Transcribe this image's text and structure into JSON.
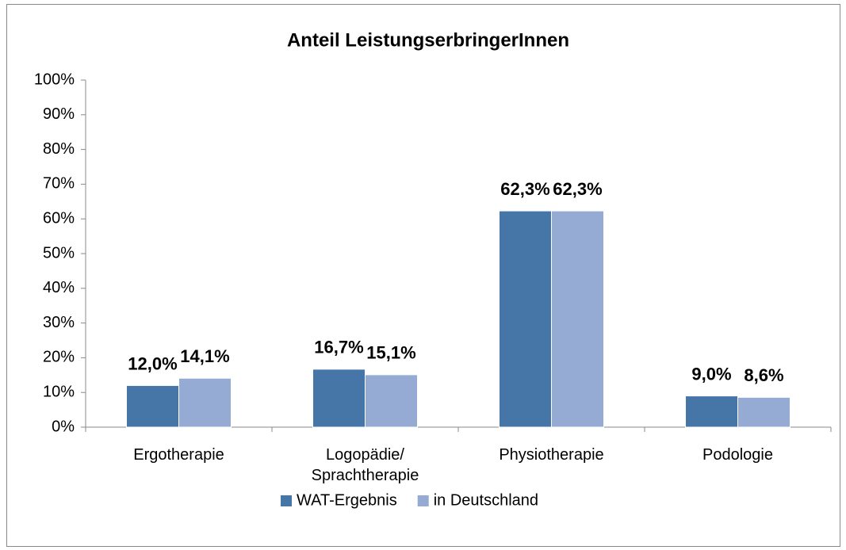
{
  "chart_data": {
    "type": "bar",
    "title": "Anteil LeistungserbringerInnen",
    "categories": [
      "Ergotherapie",
      "Logopädie/ Sprachtherapie",
      "Physiotherapie",
      "Podologie"
    ],
    "series": [
      {
        "name": "WAT-Ergebnis",
        "color": "#4675a8",
        "values": [
          12.0,
          16.7,
          62.3,
          9.0
        ],
        "value_labels": [
          "12,0%",
          "16,7%",
          "62,3%",
          "9,0%"
        ]
      },
      {
        "name": "in Deutschland",
        "color": "#95abd3",
        "values": [
          14.1,
          15.1,
          62.3,
          8.6
        ],
        "value_labels": [
          "14,1%",
          "15,1%",
          "62,3%",
          "8,6%"
        ]
      }
    ],
    "ylim": [
      0,
      100
    ],
    "yticks": [
      {
        "value": 0,
        "label": "0%"
      },
      {
        "value": 10,
        "label": "10%"
      },
      {
        "value": 20,
        "label": "20%"
      },
      {
        "value": 30,
        "label": "30%"
      },
      {
        "value": 40,
        "label": "40%"
      },
      {
        "value": 50,
        "label": "50%"
      },
      {
        "value": 60,
        "label": "60%"
      },
      {
        "value": 70,
        "label": "70%"
      },
      {
        "value": 80,
        "label": "80%"
      },
      {
        "value": 90,
        "label": "90%"
      },
      {
        "value": 100,
        "label": "100%"
      }
    ],
    "legend": "bottom"
  }
}
